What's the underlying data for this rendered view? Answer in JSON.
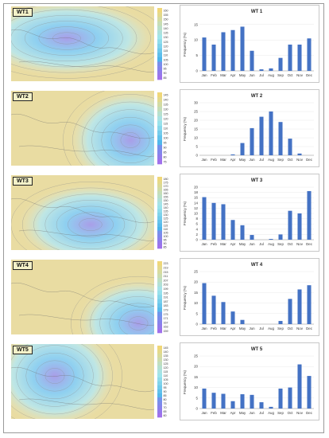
{
  "months": [
    "Jan",
    "Feb",
    "Mar",
    "Apr",
    "May",
    "Jun",
    "Jul",
    "Aug",
    "Sep",
    "Oct",
    "Nov",
    "Dec"
  ],
  "bar_color": "#4472c4",
  "panels": [
    {
      "map_label": "WT1",
      "colorbar_ticks": [
        "160",
        "155",
        "150",
        "145",
        "140",
        "135",
        "130",
        "125",
        "120",
        "115",
        "110",
        "105",
        "100",
        "95",
        "90",
        "85"
      ],
      "map_style": "west-cool",
      "chart": {
        "title": "WT 1",
        "ylabel": "Frequency (%)",
        "yticks": [
          "0",
          "5",
          "10",
          "15"
        ],
        "ylim": [
          0,
          17
        ],
        "values": [
          10.8,
          8.5,
          12.5,
          13.2,
          14.3,
          6.5,
          0.5,
          0.8,
          4.2,
          8.5,
          8.5,
          10.5
        ]
      }
    },
    {
      "map_label": "WT2",
      "colorbar_ticks": [
        "145",
        "140",
        "135",
        "130",
        "125",
        "120",
        "115",
        "110",
        "105",
        "100",
        "95",
        "90",
        "85",
        "80",
        "75"
      ],
      "map_style": "east-cool",
      "chart": {
        "title": "WT 2",
        "ylabel": "Frequency (%)",
        "yticks": [
          "0",
          "5",
          "10",
          "15",
          "20",
          "25",
          "30"
        ],
        "ylim": [
          0,
          30
        ],
        "values": [
          0,
          0,
          0,
          0.5,
          7,
          15.5,
          22,
          25,
          19,
          9.5,
          1,
          0
        ]
      }
    },
    {
      "map_label": "WT3",
      "colorbar_ticks": [
        "180",
        "175",
        "170",
        "165",
        "160",
        "155",
        "150",
        "145",
        "140",
        "135",
        "130",
        "125",
        "120",
        "115",
        "110",
        "105",
        "100",
        "95",
        "90",
        "85"
      ],
      "map_style": "center-cool",
      "chart": {
        "title": "WT 3",
        "ylabel": "Frequency (%)",
        "yticks": [
          "0",
          "2",
          "4",
          "6",
          "8",
          "10",
          "12",
          "14",
          "16",
          "18",
          "20"
        ],
        "ylim": [
          0,
          20
        ],
        "values": [
          16.2,
          14,
          13.5,
          7.5,
          5.5,
          1.8,
          0,
          0.3,
          2,
          11,
          10,
          18.5
        ]
      }
    },
    {
      "map_label": "WT4",
      "colorbar_ticks": [
        "223",
        "219",
        "215",
        "211",
        "207",
        "203",
        "199",
        "195",
        "191",
        "187",
        "183",
        "179",
        "175",
        "171",
        "167",
        "163",
        "159"
      ],
      "map_style": "southeast-cool",
      "chart": {
        "title": "WT 4",
        "ylabel": "Frequency (%)",
        "yticks": [
          "0",
          "5",
          "10",
          "15",
          "20",
          "25"
        ],
        "ylim": [
          0,
          25
        ],
        "values": [
          19.5,
          13.5,
          10.5,
          6,
          2,
          0,
          0,
          0,
          1.5,
          12,
          16.5,
          18.5
        ]
      }
    },
    {
      "map_label": "WT5",
      "colorbar_ticks": [
        "145",
        "140",
        "135",
        "130",
        "125",
        "120",
        "115",
        "110",
        "105",
        "100",
        "95",
        "90",
        "85",
        "80",
        "75",
        "70",
        "65",
        "60"
      ],
      "map_style": "northwest-cool",
      "chart": {
        "title": "WT 5",
        "ylabel": "Frequency (%)",
        "yticks": [
          "0",
          "5",
          "10",
          "15",
          "20",
          "25"
        ],
        "ylim": [
          0,
          25
        ],
        "values": [
          9.5,
          7.5,
          7,
          3.5,
          6.8,
          6.5,
          3,
          0.8,
          9.5,
          10,
          21,
          15.5
        ]
      }
    }
  ],
  "chart_data": [
    {
      "type": "bar",
      "title": "WT 1",
      "ylabel": "Frequency (%)",
      "categories": [
        "Jan",
        "Feb",
        "Mar",
        "Apr",
        "May",
        "Jun",
        "Jul",
        "Aug",
        "Sep",
        "Oct",
        "Nov",
        "Dec"
      ],
      "values": [
        10.8,
        8.5,
        12.5,
        13.2,
        14.3,
        6.5,
        0.5,
        0.8,
        4.2,
        8.5,
        8.5,
        10.5
      ],
      "ylim": [
        0,
        17
      ]
    },
    {
      "type": "bar",
      "title": "WT 2",
      "ylabel": "Frequency (%)",
      "categories": [
        "Jan",
        "Feb",
        "Mar",
        "Apr",
        "May",
        "Jun",
        "Jul",
        "Aug",
        "Sep",
        "Oct",
        "Nov",
        "Dec"
      ],
      "values": [
        0,
        0,
        0,
        0.5,
        7,
        15.5,
        22,
        25,
        19,
        9.5,
        1,
        0
      ],
      "ylim": [
        0,
        30
      ]
    },
    {
      "type": "bar",
      "title": "WT 3",
      "ylabel": "Frequency (%)",
      "categories": [
        "Jan",
        "Feb",
        "Mar",
        "Apr",
        "May",
        "Jun",
        "Jul",
        "Aug",
        "Sep",
        "Oct",
        "Nov",
        "Dec"
      ],
      "values": [
        16.2,
        14,
        13.5,
        7.5,
        5.5,
        1.8,
        0,
        0.3,
        2,
        11,
        10,
        18.5
      ],
      "ylim": [
        0,
        20
      ]
    },
    {
      "type": "bar",
      "title": "WT 4",
      "ylabel": "Frequency (%)",
      "categories": [
        "Jan",
        "Feb",
        "Mar",
        "Apr",
        "May",
        "Jun",
        "Jul",
        "Aug",
        "Sep",
        "Oct",
        "Nov",
        "Dec"
      ],
      "values": [
        19.5,
        13.5,
        10.5,
        6,
        2,
        0,
        0,
        0,
        1.5,
        12,
        16.5,
        18.5
      ],
      "ylim": [
        0,
        25
      ]
    },
    {
      "type": "bar",
      "title": "WT 5",
      "ylabel": "Frequency (%)",
      "categories": [
        "Jan",
        "Feb",
        "Mar",
        "Apr",
        "May",
        "Jun",
        "Jul",
        "Aug",
        "Sep",
        "Oct",
        "Nov",
        "Dec"
      ],
      "values": [
        9.5,
        7.5,
        7,
        3.5,
        6.8,
        6.5,
        3,
        0.8,
        9.5,
        10,
        21,
        15.5
      ],
      "ylim": [
        0,
        25
      ]
    }
  ]
}
